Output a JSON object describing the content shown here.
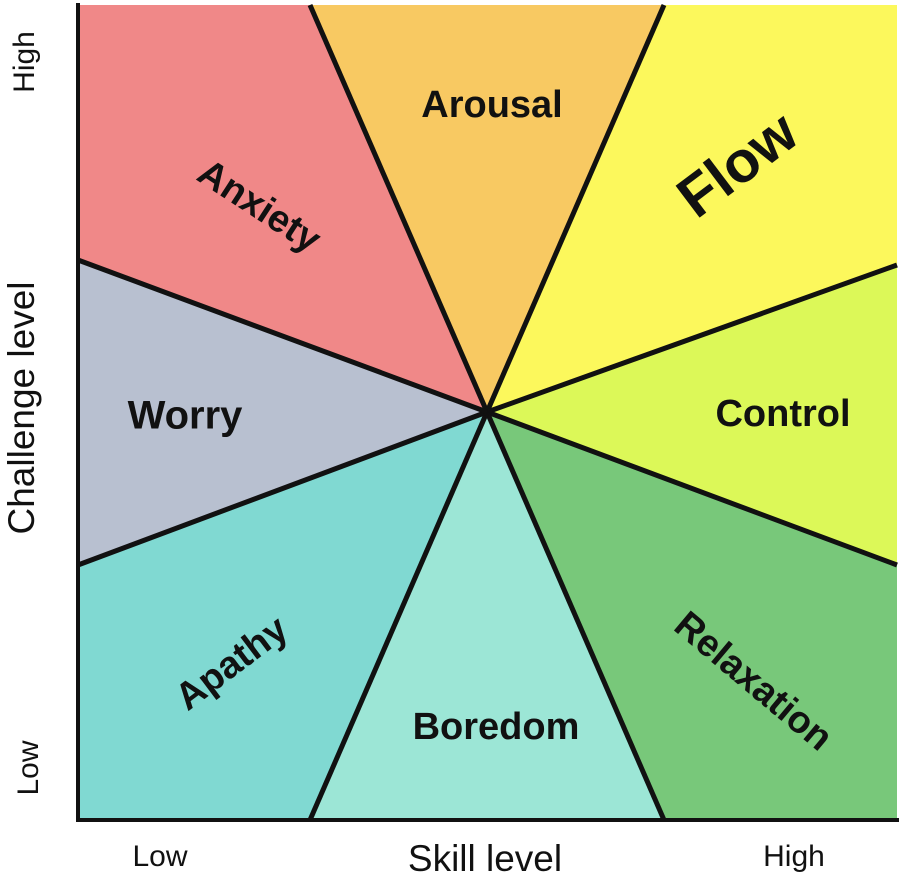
{
  "axes": {
    "x_title": "Skill level",
    "y_title": "Challenge level",
    "x_low": "Low",
    "x_high": "High",
    "y_low": "Low",
    "y_high": "High"
  },
  "regions": {
    "anxiety": {
      "label": "Anxiety",
      "color": "#f08888"
    },
    "arousal": {
      "label": "Arousal",
      "color": "#f8c962"
    },
    "flow": {
      "label": "Flow",
      "color": "#fcf85c"
    },
    "control": {
      "label": "Control",
      "color": "#dcf858"
    },
    "relaxation": {
      "label": "Relaxation",
      "color": "#78c87a"
    },
    "boredom": {
      "label": "Boredom",
      "color": "#9ce6d6"
    },
    "apathy": {
      "label": "Apathy",
      "color": "#80d9d2"
    },
    "worry": {
      "label": "Worry",
      "color": "#b8c0d0"
    }
  }
}
